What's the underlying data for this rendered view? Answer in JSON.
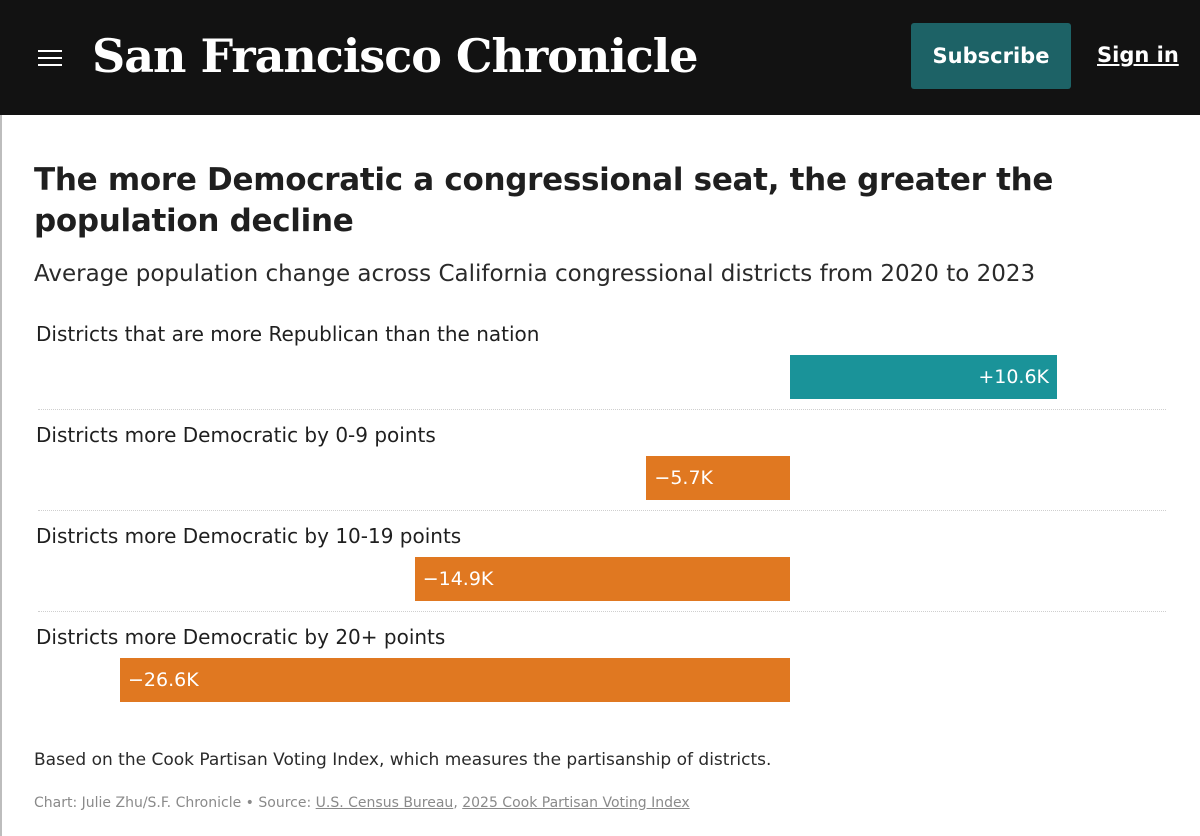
{
  "header": {
    "brand": "San Francisco Chronicle",
    "subscribe_label": "Subscribe",
    "signin_label": "Sign in"
  },
  "notes": {
    "methodology": "Based on the Cook Partisan Voting Index, which measures the partisanship of districts.",
    "credit_prefix": "Chart: Julie Zhu/S.F. Chronicle",
    "separator": " • ",
    "source_prefix": "Source: ",
    "source_1": "U.S. Census Bureau",
    "source_sep": ", ",
    "source_2": "2025 Cook Partisan Voting Index"
  },
  "colors": {
    "header_bg": "#121212",
    "subscribe_bg": "#1d6266",
    "positive_bar": "#1a9399",
    "negative_bar": "#e07821"
  },
  "chart_data": {
    "type": "bar",
    "orientation": "horizontal",
    "title": "The more Democratic a congressional seat, the greater the population decline",
    "subtitle": "Average population change across California congressional districts from 2020 to 2023",
    "categories": [
      "Districts that are more Republican than the nation",
      "Districts more Democratic by 0-9 points",
      "Districts more Democratic by 10-19 points",
      "Districts more Democratic by 20+ points"
    ],
    "values": [
      10.6,
      -5.7,
      -14.9,
      -26.6
    ],
    "data_labels": [
      "+10.6K",
      "−5.7K",
      "−14.9K",
      "−26.6K"
    ],
    "unit": "K",
    "xlim": [
      -29.9,
      18.0
    ],
    "grid": false
  }
}
